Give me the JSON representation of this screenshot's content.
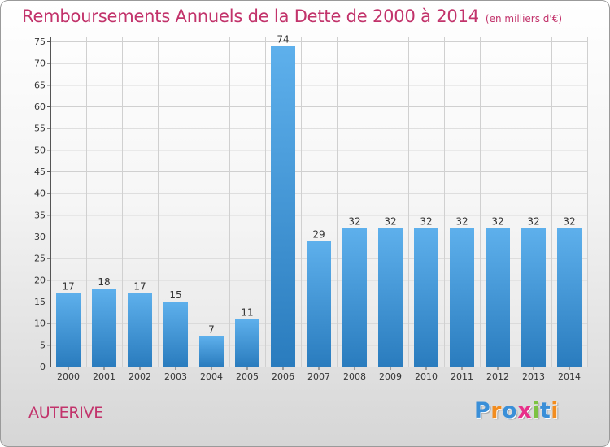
{
  "title": {
    "main": "Remboursements Annuels de la Dette de 2000 à 2014",
    "unit": "(en milliers d'€)"
  },
  "footer": {
    "town": "AUTERIVE",
    "logo": [
      "P",
      "r",
      "o",
      "x",
      "i",
      "t",
      "i"
    ],
    "logo_colors": [
      "#3a8fd8",
      "#f28c1e",
      "#3a8fd8",
      "#e8308a",
      "#7cc242",
      "#3a8fd8",
      "#f28c1e"
    ]
  },
  "colors": {
    "bar_top": "#5eb0ec",
    "bar_bottom": "#2a7cbe",
    "title": "#c2336b"
  },
  "chart_data": {
    "type": "bar",
    "categories": [
      "2000",
      "2001",
      "2002",
      "2003",
      "2004",
      "2005",
      "2006",
      "2007",
      "2008",
      "2009",
      "2010",
      "2011",
      "2012",
      "2013",
      "2014"
    ],
    "values": [
      17,
      18,
      17,
      15,
      7,
      11,
      74,
      29,
      32,
      32,
      32,
      32,
      32,
      32,
      32
    ],
    "ylim": [
      0,
      75
    ],
    "yticks": [
      0,
      5,
      10,
      15,
      20,
      25,
      30,
      35,
      40,
      45,
      50,
      55,
      60,
      65,
      70,
      75
    ],
    "grid": true
  }
}
